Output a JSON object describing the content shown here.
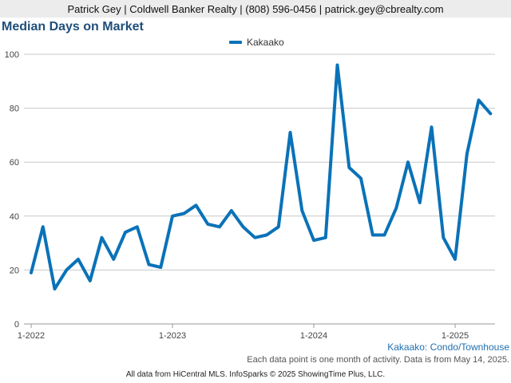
{
  "header": {
    "contact_line": "Patrick Gey | Coldwell Banker Realty | (808) 596-0456 | patrick.gey@cbrealty.com"
  },
  "chart_data": {
    "type": "line",
    "title": "Median Days on Market",
    "xlabel": "",
    "ylabel": "",
    "ylim": [
      0,
      100
    ],
    "yticks": [
      0,
      20,
      40,
      60,
      80,
      100
    ],
    "xtick_labels": [
      "1-2022",
      "1-2023",
      "1-2024",
      "1-2025"
    ],
    "xtick_month_index": [
      0,
      12,
      24,
      36
    ],
    "legend_position": "top-center",
    "grid": true,
    "series": [
      {
        "name": "Kakaako",
        "color": "#0a72b8",
        "x": [
          "2022-01",
          "2022-02",
          "2022-03",
          "2022-04",
          "2022-05",
          "2022-06",
          "2022-07",
          "2022-08",
          "2022-09",
          "2022-10",
          "2022-11",
          "2022-12",
          "2023-01",
          "2023-02",
          "2023-03",
          "2023-04",
          "2023-05",
          "2023-06",
          "2023-07",
          "2023-08",
          "2023-09",
          "2023-10",
          "2023-11",
          "2023-12",
          "2024-01",
          "2024-02",
          "2024-03",
          "2024-04",
          "2024-05",
          "2024-06",
          "2024-07",
          "2024-08",
          "2024-09",
          "2024-10",
          "2024-11",
          "2024-12",
          "2025-01",
          "2025-02",
          "2025-03",
          "2025-04"
        ],
        "values": [
          19,
          36,
          13,
          20,
          24,
          16,
          32,
          24,
          34,
          36,
          22,
          21,
          40,
          41,
          44,
          37,
          36,
          42,
          36,
          32,
          33,
          36,
          71,
          42,
          31,
          32,
          96,
          58,
          54,
          33,
          33,
          43,
          60,
          45,
          73,
          32,
          24,
          63,
          83,
          78
        ]
      }
    ]
  },
  "sub_label": "Kakaako: Condo/Townhouse",
  "note": "Each data point is one month of activity. Data is from May 14, 2025.",
  "footer": "All data from HiCentral MLS. InfoSparks © 2025 ShowingTime Plus, LLC."
}
